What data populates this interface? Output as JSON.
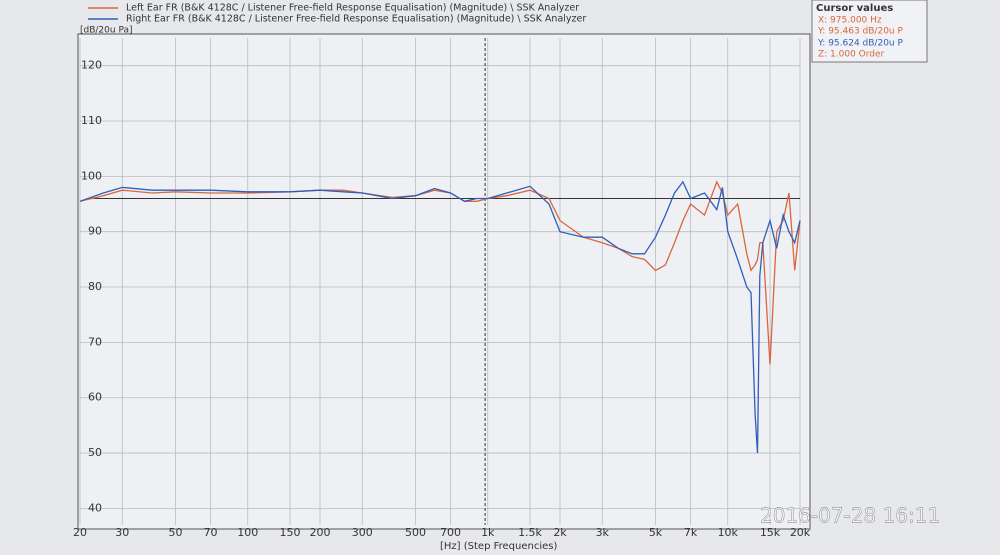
{
  "chart_data": {
    "type": "line",
    "series_titles": "",
    "ylabel": "[dB/20u Pa]",
    "xlabel": "[Hz] (Step Frequencies)",
    "xscale": "log",
    "grid": true,
    "xlim": [
      20,
      20000
    ],
    "ylim": [
      37,
      125
    ],
    "yticks": [
      40,
      50,
      60,
      70,
      80,
      90,
      100,
      110,
      120
    ],
    "xticks": [
      20,
      30,
      50,
      70,
      100,
      150,
      200,
      300,
      500,
      700,
      {
        "value": 1000,
        "label": "1k"
      },
      {
        "value": 1500,
        "label": "1.5k"
      },
      {
        "value": 2000,
        "label": "2k"
      },
      {
        "value": 3000,
        "label": "3k"
      },
      {
        "value": 5000,
        "label": "5k"
      },
      {
        "value": 7000,
        "label": "7k"
      },
      {
        "value": 10000,
        "label": "10k"
      },
      {
        "value": 15000,
        "label": "15k"
      },
      {
        "value": 20000,
        "label": "20k"
      }
    ],
    "x": [
      20,
      25,
      30,
      40,
      50,
      70,
      100,
      150,
      200,
      250,
      300,
      400,
      500,
      600,
      700,
      800,
      900,
      1000,
      1200,
      1500,
      1800,
      2000,
      2500,
      3000,
      3500,
      4000,
      4500,
      5000,
      5500,
      6000,
      6500,
      7000,
      8000,
      9000,
      9500,
      10000,
      11000,
      12000,
      12500,
      13000,
      13300,
      13600,
      14000,
      15000,
      16000,
      17000,
      18000,
      19000,
      20000
    ],
    "series": [
      {
        "name": "Left Ear FR (B&K 4128C / Listener Free-field Response Equalisation) (Magnitude) \\ SSK Analyzer",
        "color": "#d9663f",
        "values": [
          95.5,
          96.5,
          97.5,
          97,
          97.2,
          97,
          97,
          97.2,
          97.5,
          97.5,
          97,
          96.2,
          96.5,
          97.5,
          97,
          95.5,
          95.5,
          96,
          96.5,
          97.5,
          96,
          92,
          89,
          88,
          87,
          85.5,
          85,
          83,
          84,
          88,
          92,
          95,
          93,
          99,
          97,
          93,
          95,
          86,
          83,
          84,
          85,
          88,
          88,
          66,
          90,
          92,
          97,
          83,
          92
        ]
      },
      {
        "name": "Right Ear FR (B&K 4128C / Listener Free-field Response Equalisation) (Magnitude) \\ SSK Analyzer",
        "color": "#2f5fb8",
        "values": [
          95.5,
          97,
          98,
          97.5,
          97.5,
          97.5,
          97.2,
          97.2,
          97.5,
          97.2,
          97,
          96,
          96.5,
          97.8,
          97,
          95.5,
          96,
          96,
          97,
          98.2,
          95,
          90,
          89,
          89,
          87,
          86,
          86,
          89,
          93,
          97,
          99,
          96,
          97,
          94,
          98,
          90,
          85,
          80,
          79,
          57,
          50,
          82,
          88,
          92,
          87,
          93,
          90,
          88,
          92
        ]
      }
    ],
    "cursor_x": 975,
    "reference_y": 96,
    "cursor_box": {
      "title": "Cursor values",
      "lines": [
        "X: 975.000 Hz",
        "Y: 95.463 dB/20u P",
        "Y: 95.624 dB/20u P",
        "Z: 1.000 Order"
      ]
    },
    "timestamp": "2016-07-28 16:11"
  }
}
